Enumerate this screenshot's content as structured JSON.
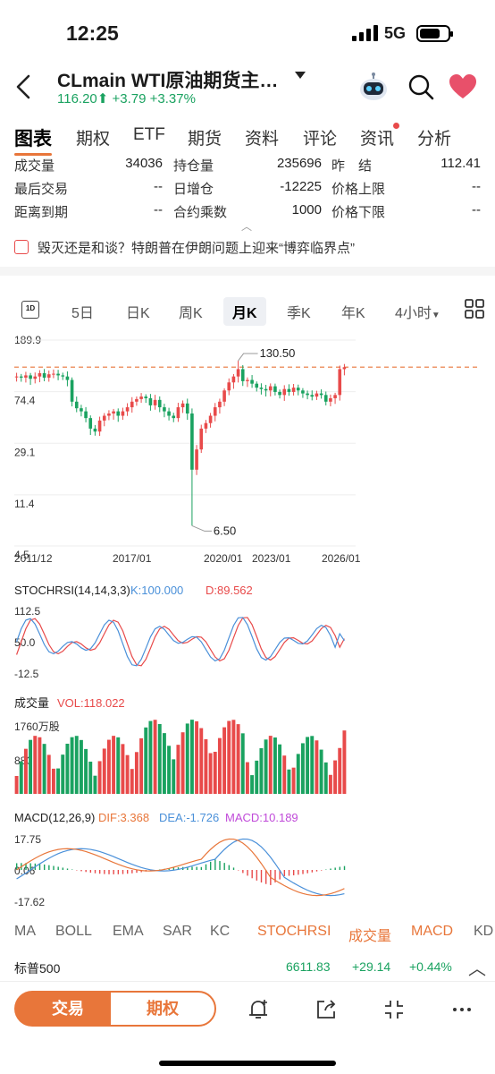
{
  "status_bar": {
    "time": "12:25",
    "network": "5G"
  },
  "header": {
    "title": "CLmain  WTI原油期货主…",
    "price": "116.20",
    "arrow": "⬆",
    "change": "+3.79",
    "change_pct": "+3.37%"
  },
  "tabs": [
    "图表",
    "期权",
    "ETF",
    "期货",
    "资料",
    "评论",
    "资讯",
    "分析"
  ],
  "stats": {
    "row1": [
      {
        "label": "成交量",
        "value": "34036"
      },
      {
        "label": "持仓量",
        "value": "235696"
      },
      {
        "label": "昨　结",
        "value": "112.41"
      }
    ],
    "row2": [
      {
        "label": "最后交易",
        "value": "--"
      },
      {
        "label": "日增仓",
        "value": "-12225"
      },
      {
        "label": "价格上限",
        "value": "--"
      }
    ],
    "row3": [
      {
        "label": "距离到期",
        "value": "--"
      },
      {
        "label": "合约乘数",
        "value": "1000"
      },
      {
        "label": "价格下限",
        "value": "--"
      }
    ]
  },
  "news": "毁灭还是和谈？特朗普在伊朗问题上迎来“博弈临界点”",
  "period_tabs": {
    "icon_1d": "1D",
    "items": [
      "5日",
      "日K",
      "周K",
      "月K",
      "季K",
      "年K",
      "4小时"
    ],
    "active": "月K"
  },
  "colors": {
    "up": "#e84a4a",
    "down": "#1aa260",
    "accent": "#e8763a",
    "stoch_k": "#4a90d9",
    "stoch_d": "#e84a4a"
  },
  "chart_data": [
    {
      "type": "candlestick",
      "title": "",
      "y_ticks": [
        "189.9",
        "74.4",
        "29.1",
        "11.4",
        "4.5"
      ],
      "x_ticks": [
        "2011/12",
        "2017/01",
        "2020/01",
        "2023/01",
        "2026/01"
      ],
      "annotations": [
        {
          "label": "130.50",
          "x": "2022/03",
          "y": 130.5
        },
        {
          "label": "6.50",
          "x": "2020/04",
          "y": 6.5
        }
      ],
      "reference_line": 116.2,
      "scale": "log",
      "closes": [
        98,
        96,
        100,
        94,
        98,
        104,
        96,
        102,
        103,
        100,
        98,
        92,
        62,
        55,
        52,
        46,
        38,
        36,
        44,
        48,
        50,
        52,
        48,
        52,
        56,
        62,
        65,
        68,
        66,
        58,
        64,
        56,
        52,
        48,
        46,
        56,
        60,
        50,
        18,
        26,
        38,
        42,
        48,
        56,
        62,
        76,
        88,
        98,
        112,
        90,
        92,
        86,
        80,
        78,
        76,
        82,
        74,
        70,
        78,
        74,
        80,
        76,
        72,
        70,
        68,
        72,
        70,
        62,
        66,
        70,
        112,
        116
      ]
    },
    {
      "type": "line",
      "title": "STOCHRSI(14,14,3,3)",
      "legend": [
        {
          "name": "K",
          "value": "100.000"
        },
        {
          "name": "D",
          "value": "89.562"
        }
      ],
      "y_ticks": [
        "112.5",
        "50.0",
        "-12.5"
      ]
    },
    {
      "type": "bar",
      "title": "成交量",
      "legend": [
        {
          "name": "VOL",
          "value": "118.022"
        }
      ],
      "y_ticks": [
        "1760万股",
        "880"
      ]
    },
    {
      "type": "line",
      "title": "MACD(12,26,9)",
      "legend": [
        {
          "name": "DIF",
          "value": "3.368"
        },
        {
          "name": "DEA",
          "value": "-1.726"
        },
        {
          "name": "MACD",
          "value": "10.189"
        }
      ],
      "y_ticks": [
        "17.75",
        "0.06",
        "-17.62"
      ]
    }
  ],
  "indicators": [
    "MA",
    "BOLL",
    "EMA",
    "SAR",
    "KC",
    "STOCHRSI",
    "成交量",
    "MACD",
    "KD"
  ],
  "active_indicators": [
    "STOCHRSI",
    "成交量",
    "MACD"
  ],
  "index_bar": {
    "name": "标普500",
    "value": "6611.83",
    "change": "+29.14",
    "pct": "+0.44%"
  },
  "bottom": {
    "trade": "交易",
    "options": "期权"
  }
}
